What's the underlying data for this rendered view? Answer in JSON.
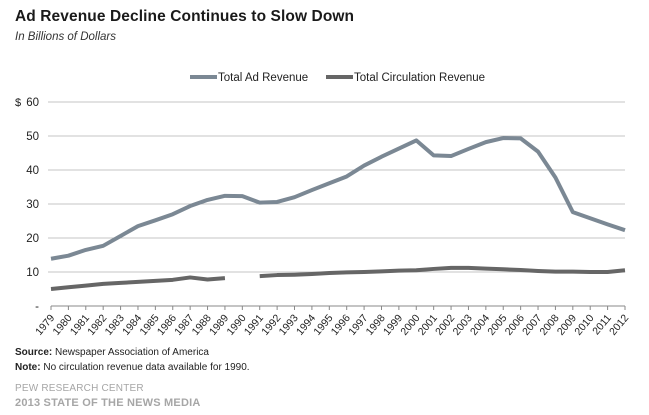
{
  "chart_data": {
    "type": "line",
    "title": "Ad Revenue Decline Continues to Slow Down",
    "subtitle": "In Billions of Dollars",
    "xlabel": "",
    "ylabel": "$",
    "ylim": [
      0,
      60
    ],
    "yticks": [
      0,
      10,
      20,
      30,
      40,
      50,
      60
    ],
    "ytick_labels": [
      "-",
      "10",
      "20",
      "30",
      "40",
      "50",
      "60"
    ],
    "y_unit_prefix": "$",
    "grid": true,
    "legend_position": "top-center",
    "x": [
      "1979",
      "1980",
      "1981",
      "1982",
      "1983",
      "1984",
      "1985",
      "1986",
      "1987",
      "1988",
      "1989",
      "1990",
      "1991",
      "1992",
      "1993",
      "1994",
      "1995",
      "1996",
      "1997",
      "1998",
      "1999",
      "2000",
      "2001",
      "2002",
      "2003",
      "2004",
      "2005",
      "2006",
      "2007",
      "2008",
      "2009",
      "2010",
      "2011",
      "2012"
    ],
    "series": [
      {
        "name": "Total Ad Revenue",
        "color": "#7b8894",
        "values": [
          13.9,
          14.8,
          16.5,
          17.7,
          20.6,
          23.5,
          25.2,
          27.0,
          29.4,
          31.2,
          32.4,
          32.3,
          30.4,
          30.6,
          32.0,
          34.1,
          36.1,
          38.1,
          41.3,
          43.9,
          46.3,
          48.7,
          44.3,
          44.1,
          46.2,
          48.2,
          49.4,
          49.3,
          45.4,
          37.8,
          27.6,
          25.8,
          24.0,
          22.3
        ]
      },
      {
        "name": "Total Circulation Revenue",
        "color": "#666666",
        "values": [
          5.0,
          5.5,
          6.0,
          6.5,
          6.8,
          7.1,
          7.4,
          7.7,
          8.4,
          7.8,
          8.2,
          null,
          8.8,
          9.1,
          9.2,
          9.4,
          9.7,
          9.9,
          10.0,
          10.2,
          10.4,
          10.5,
          10.9,
          11.2,
          11.2,
          11.0,
          10.8,
          10.6,
          10.3,
          10.1,
          10.1,
          10.0,
          10.0,
          10.5
        ]
      }
    ]
  },
  "footer": {
    "source_label": "Source:",
    "source_text": " Newspaper Association of America",
    "note_label": "Note:",
    "note_text": " No circulation revenue data available for 1990.",
    "org": "PEW RESEARCH CENTER",
    "report": "2013 STATE OF THE NEWS MEDIA"
  }
}
